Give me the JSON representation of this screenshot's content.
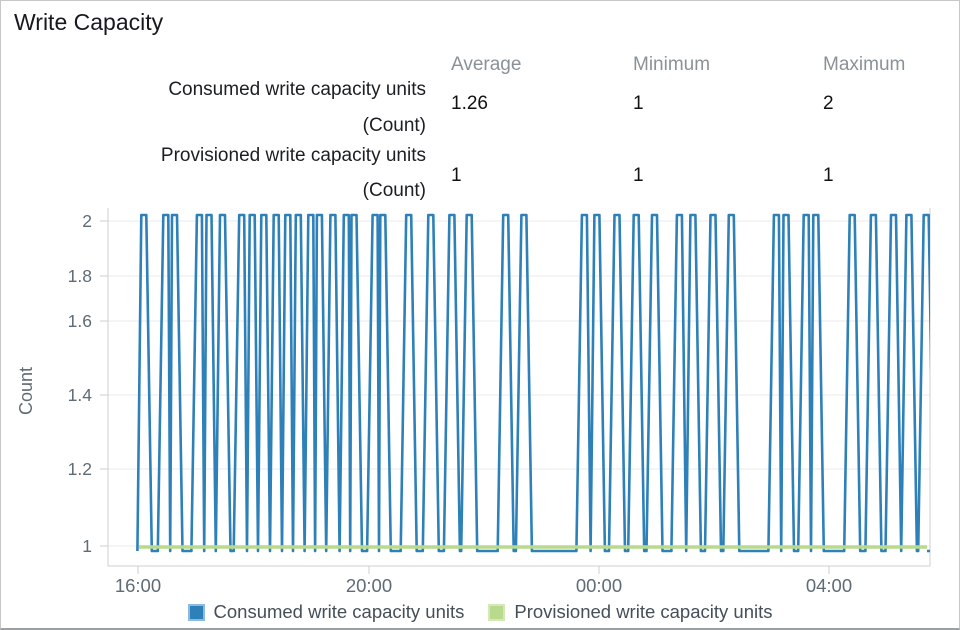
{
  "title": "Write Capacity",
  "stats": {
    "columns": [
      "Average",
      "Minimum",
      "Maximum"
    ],
    "rows": [
      {
        "label": "Consumed write capacity units",
        "unit": "(Count)",
        "average": "1.26",
        "minimum": "1",
        "maximum": "2"
      },
      {
        "label": "Provisioned write capacity units",
        "unit": "(Count)",
        "average": "1",
        "minimum": "1",
        "maximum": "1"
      }
    ]
  },
  "chart_data": {
    "type": "line",
    "title": "Write Capacity",
    "ylabel": "Count",
    "ylim": [
      1,
      2
    ],
    "y_ticks": [
      "2",
      "1.8",
      "1.6",
      "1.4",
      "1.2",
      "1"
    ],
    "x_ticks": [
      "16:00",
      "20:00",
      "00:00",
      "04:00"
    ],
    "grid": true,
    "legend_position": "bottom",
    "series": [
      {
        "name": "Consumed write capacity units",
        "color": "#2e80b9",
        "baseline_value": 1,
        "spike_value": 2,
        "spike_minutes_after_16_00": [
          6,
          29,
          38,
          64,
          74,
          88,
          108,
          119,
          131,
          144,
          156,
          167,
          180,
          189,
          203,
          217,
          225,
          247,
          255,
          282,
          305,
          327,
          345,
          383,
          402,
          465,
          478,
          499,
          519,
          538,
          564,
          578,
          599,
          618,
          665,
          675,
          696,
          706,
          744,
          766,
          787,
          803,
          821
        ]
      },
      {
        "name": "Provisioned write capacity units",
        "color": "#b9da8d",
        "constant_value": 1
      }
    ]
  },
  "legend": {
    "items": [
      {
        "label": "Consumed write capacity units",
        "color": "#2e80b9"
      },
      {
        "label": "Provisioned write capacity units",
        "color": "#b9da8d"
      }
    ]
  }
}
